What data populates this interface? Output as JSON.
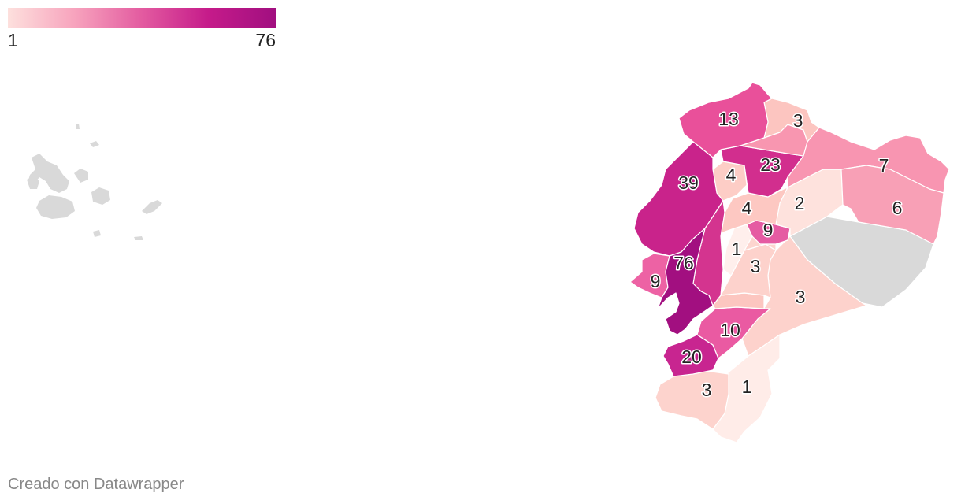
{
  "legend": {
    "min_label": "1",
    "max_label": "76",
    "color_low": "#fde0dd",
    "color_high": "#a10f80"
  },
  "map": {
    "no_data_color": "#d9d9d9",
    "values": {
      "esmeraldas": "13",
      "carchi": "3",
      "imbabura": "23",
      "sucumbios": "7",
      "manabi": "39",
      "santo_domingo": "4",
      "pichincha": "4",
      "napo": "2",
      "orellana": "6",
      "cotopaxi": "9",
      "bolivar": "1",
      "tungurahua": "3",
      "guayas": "76",
      "santa_elena": "9",
      "morona": "3",
      "azuay": "10",
      "el_oro": "20",
      "loja": "3",
      "zamora": "1"
    },
    "fills": {
      "esmeraldas": "#e9509a",
      "carchi": "#fcc5c0",
      "imbabura": "#d22e8e",
      "imbabura_north": "#f896b0",
      "sucumbios": "#f895b1",
      "manabi": "#c9238b",
      "santo_domingo": "#fdcdc6",
      "pichincha": "#fdc8c2",
      "napo": "#fee2dd",
      "orellana": "#f8a0b6",
      "cotopaxi": "#e55ba2",
      "bolivar": "#ffefec",
      "tungurahua": "#fdd5cf",
      "los_rios": "#d4348f",
      "guayas": "#a20f80",
      "santa_elena": "#ed62a4",
      "chimborazo": "#fdd2cc",
      "canar": "#fcc6c0",
      "morona": "#fdd2cc",
      "azuay": "#ea5aa2",
      "el_oro": "#c82590",
      "loja": "#fdd3cd",
      "zamora": "#ffece8",
      "pastaza": "#d9d9d9"
    }
  },
  "footer": {
    "credit": "Creado con Datawrapper"
  }
}
